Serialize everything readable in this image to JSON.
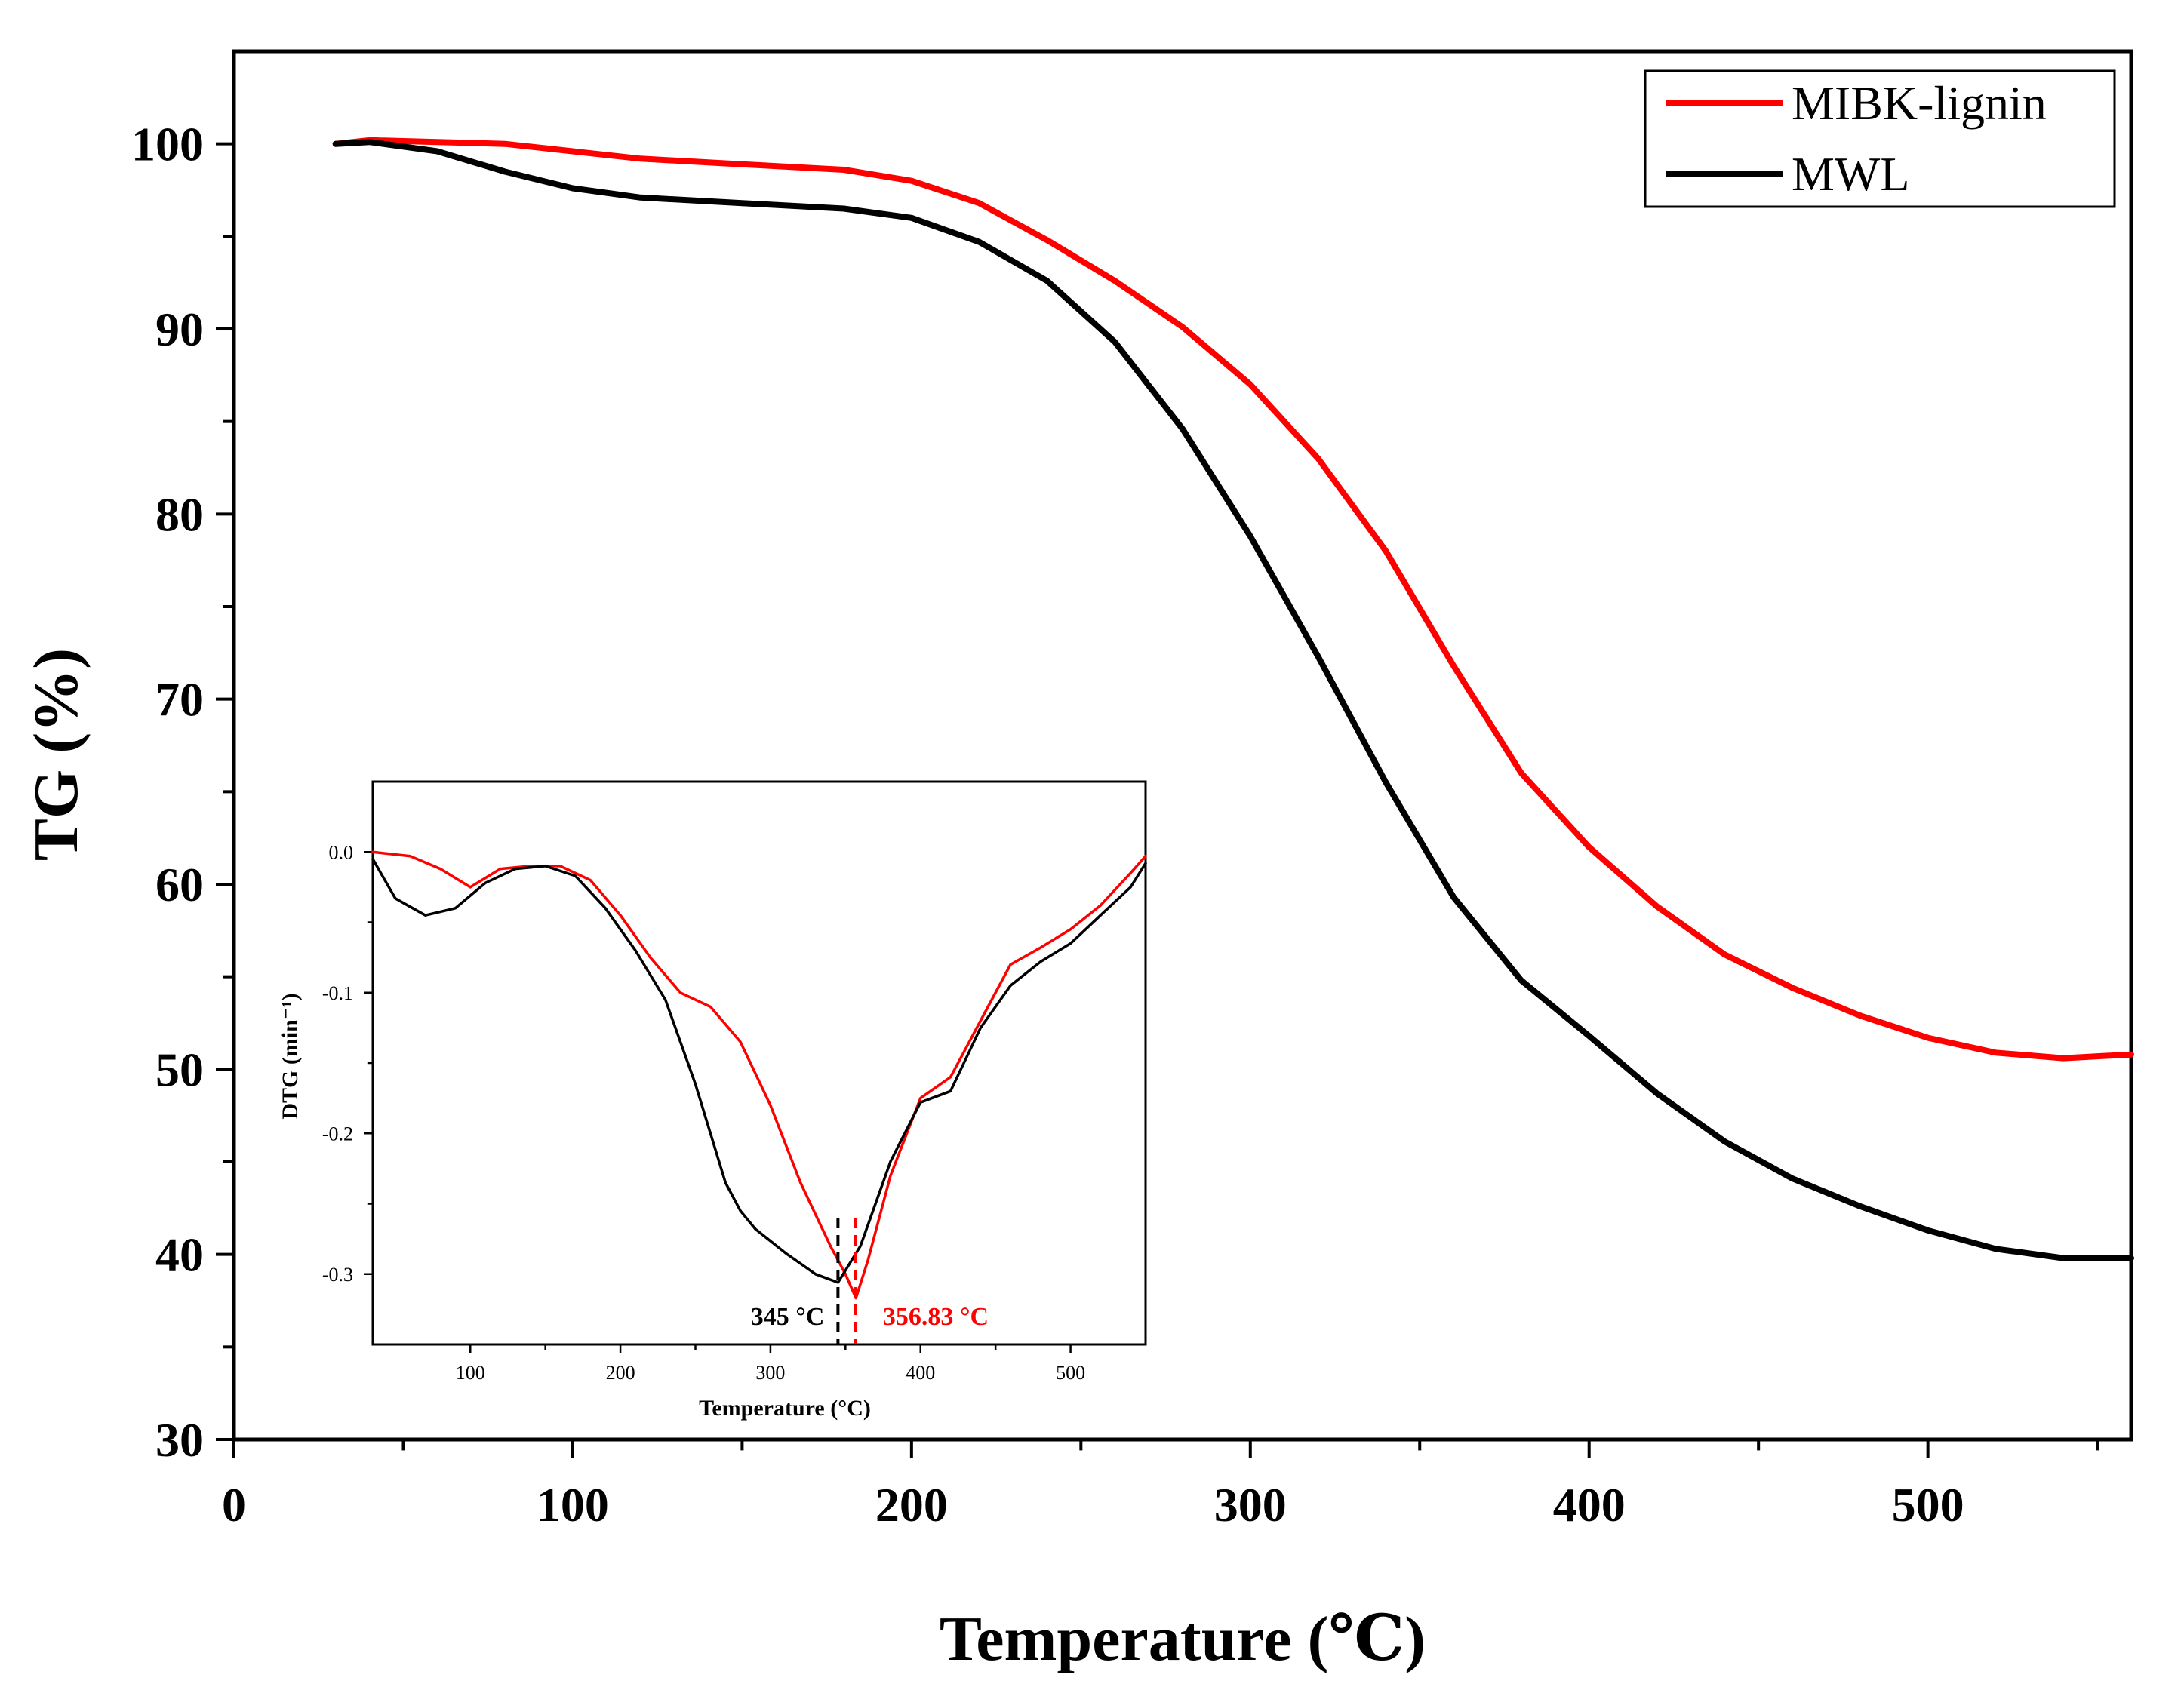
{
  "chart_data": [
    {
      "type": "line",
      "title": "",
      "xlabel": "Temperature (℃)",
      "ylabel": "TG (%)",
      "xlim": [
        0,
        560
      ],
      "ylim": [
        30,
        105
      ],
      "xticks": [
        "0",
        "100",
        "200",
        "300",
        "400",
        "500"
      ],
      "yticks": [
        "30",
        "40",
        "50",
        "60",
        "70",
        "80",
        "90",
        "100"
      ],
      "legend_position": "top-right",
      "grid": false,
      "series": [
        {
          "name": "MIBK-lignin",
          "color": "#ff0000",
          "x": [
            30,
            40,
            60,
            80,
            100,
            120,
            150,
            180,
            200,
            220,
            240,
            260,
            280,
            300,
            320,
            340,
            360,
            380,
            400,
            420,
            440,
            460,
            480,
            500,
            520,
            540,
            560
          ],
          "values": [
            100,
            100.2,
            100.1,
            100,
            99.6,
            99.2,
            98.9,
            98.6,
            98,
            96.8,
            94.8,
            92.6,
            90.1,
            87,
            83,
            78,
            71.8,
            66,
            62,
            58.8,
            56.2,
            54.4,
            52.9,
            51.7,
            50.9,
            50.6,
            50.8
          ]
        },
        {
          "name": "MWL",
          "color": "#000000",
          "x": [
            30,
            40,
            60,
            80,
            100,
            120,
            150,
            180,
            200,
            220,
            240,
            260,
            280,
            300,
            320,
            340,
            360,
            380,
            400,
            420,
            440,
            460,
            480,
            500,
            520,
            540,
            560
          ],
          "values": [
            100,
            100.1,
            99.6,
            98.5,
            97.6,
            97.1,
            96.8,
            96.5,
            96,
            94.7,
            92.6,
            89.3,
            84.6,
            78.8,
            72.3,
            65.5,
            59.3,
            54.8,
            51.8,
            48.7,
            46.1,
            44.1,
            42.6,
            41.3,
            40.3,
            39.8,
            39.8
          ]
        }
      ]
    },
    {
      "type": "line",
      "title": "",
      "xlabel": "Temperature (°C)",
      "ylabel": "DTG (min⁻¹)",
      "xlim": [
        35,
        550
      ],
      "ylim": [
        -0.35,
        0.05
      ],
      "xticks": [
        "100",
        "200",
        "300",
        "400",
        "500"
      ],
      "yticks": [
        "0.0",
        "-0.1",
        "-0.2",
        "-0.3"
      ],
      "series": [
        {
          "name": "MIBK-lignin",
          "color": "#ff0000",
          "x": [
            35,
            60,
            80,
            100,
            120,
            140,
            160,
            180,
            200,
            220,
            240,
            260,
            280,
            300,
            320,
            340,
            350,
            357,
            365,
            380,
            400,
            420,
            440,
            460,
            480,
            500,
            520,
            540,
            550
          ],
          "values": [
            0,
            -0.003,
            -0.012,
            -0.025,
            -0.012,
            -0.01,
            -0.01,
            -0.02,
            -0.045,
            -0.075,
            -0.1,
            -0.11,
            -0.135,
            -0.18,
            -0.235,
            -0.28,
            -0.3,
            -0.317,
            -0.29,
            -0.23,
            -0.175,
            -0.16,
            -0.12,
            -0.08,
            -0.068,
            -0.055,
            -0.038,
            -0.015,
            -0.003
          ]
        },
        {
          "name": "MWL",
          "color": "#000000",
          "x": [
            35,
            50,
            70,
            90,
            110,
            130,
            150,
            170,
            190,
            210,
            230,
            250,
            260,
            270,
            280,
            290,
            310,
            330,
            345,
            360,
            380,
            400,
            420,
            440,
            460,
            480,
            500,
            520,
            540,
            550
          ],
          "values": [
            -0.005,
            -0.033,
            -0.045,
            -0.04,
            -0.022,
            -0.012,
            -0.01,
            -0.017,
            -0.04,
            -0.07,
            -0.105,
            -0.165,
            -0.2,
            -0.235,
            -0.255,
            -0.268,
            -0.285,
            -0.3,
            -0.306,
            -0.28,
            -0.22,
            -0.178,
            -0.17,
            -0.125,
            -0.095,
            -0.078,
            -0.065,
            -0.045,
            -0.025,
            -0.008
          ]
        }
      ],
      "annotations": [
        {
          "label": "345 °C",
          "x": 345,
          "color": "#000000"
        },
        {
          "label": "356.83 °C",
          "x": 356.83,
          "color": "#ff0000"
        }
      ]
    }
  ]
}
